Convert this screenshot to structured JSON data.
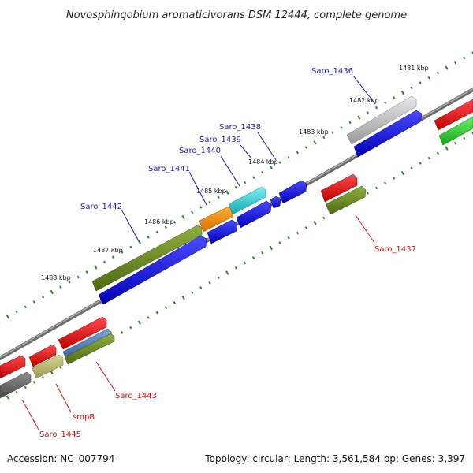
{
  "title": "Novosphingobium aromaticivorans DSM 12444, complete genome",
  "ticks": [
    "1481 kbp",
    "1482 kbp",
    "1483 kbp",
    "1484 kbp",
    "1485 kbp",
    "1486 kbp",
    "1487 kbp",
    "1488 kbp"
  ],
  "labels": {
    "saro_1436": "Saro_1436",
    "saro_1437": "Saro_1437",
    "saro_1438": "Saro_1438",
    "saro_1439": "Saro_1439",
    "saro_1440": "Saro_1440",
    "saro_1441": "Saro_1441",
    "saro_1442": "Saro_1442",
    "saro_1443": "Saro_1443",
    "smpb": "smpB",
    "saro_1445": "Saro_1445"
  },
  "footer": {
    "accession": "Accession: NC_007794",
    "summary": "Topology: circular; Length: 3,561,584 bp; Genes: 3,397"
  },
  "colors": {
    "backbone": "#808080",
    "cds_blue": "#1010e0",
    "cds_red": "#ee1111",
    "olive": "#6b8a1e",
    "orange": "#f28a00",
    "cyan": "#1cc9d0",
    "gray": "#b5b5b5",
    "dark_gray": "#666666",
    "khaki": "#b4b46a",
    "steel_blue": "#4a7ab8",
    "green": "#22cc22",
    "tick_mark": "#2e7d2e",
    "label_blue": "#1a1aaa",
    "label_red": "#cc1111"
  }
}
